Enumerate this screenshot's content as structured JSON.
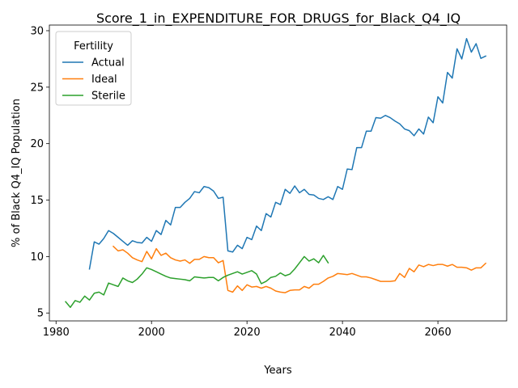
{
  "chart_data": {
    "type": "line",
    "title": "Score_1_in_EXPENDITURE_FOR_DRUGS_for_Black_Q4_IQ",
    "xlabel": "Years",
    "ylabel": "% of Black Q4_IQ Population",
    "xlim": [
      1978.6,
      2074.4
    ],
    "ylim": [
      4.3,
      30.5
    ],
    "xticks": [
      1980,
      2000,
      2020,
      2040,
      2060
    ],
    "xtick_labels": [
      "1980",
      "2000",
      "2020",
      "2040",
      "2060"
    ],
    "yticks": [
      5,
      10,
      15,
      20,
      25,
      30
    ],
    "ytick_labels": [
      "5",
      "10",
      "15",
      "20",
      "25",
      "30"
    ],
    "grid": false,
    "legend": {
      "title": "Fertility",
      "placement": "top-left",
      "entries": [
        "Actual",
        "Ideal",
        "Sterile"
      ]
    },
    "series": [
      {
        "name": "Actual",
        "color": "#1f77b4",
        "x": [
          1987,
          1988,
          1989,
          1990,
          1991,
          1992,
          1993,
          1994,
          1995,
          1996,
          1997,
          1998,
          1999,
          2000,
          2001,
          2002,
          2003,
          2004,
          2005,
          2006,
          2007,
          2008,
          2009,
          2010,
          2011,
          2012,
          2013,
          2014,
          2015,
          2016,
          2017,
          2018,
          2019,
          2020,
          2021,
          2022,
          2023,
          2024,
          2025,
          2026,
          2027,
          2028,
          2029,
          2030,
          2031,
          2032,
          2033,
          2034,
          2035,
          2036,
          2037,
          2038,
          2039,
          2040,
          2041,
          2042,
          2043,
          2044,
          2045,
          2046,
          2047,
          2048,
          2049,
          2050,
          2051,
          2052,
          2053,
          2054,
          2055,
          2056,
          2057,
          2058,
          2059,
          2060,
          2061,
          2062,
          2063,
          2064,
          2065,
          2066,
          2067,
          2068,
          2069,
          2070
        ],
        "values": [
          8.9,
          11.3,
          11.1,
          11.6,
          12.3,
          12.05,
          11.7,
          11.35,
          11.0,
          11.4,
          11.25,
          11.2,
          11.7,
          11.35,
          12.3,
          11.95,
          13.2,
          12.8,
          14.35,
          14.35,
          14.8,
          15.15,
          15.75,
          15.65,
          16.2,
          16.1,
          15.8,
          15.15,
          15.25,
          10.5,
          10.4,
          11.0,
          10.7,
          11.7,
          11.5,
          12.7,
          12.3,
          13.8,
          13.5,
          14.8,
          14.6,
          15.95,
          15.6,
          16.25,
          15.65,
          15.95,
          15.5,
          15.45,
          15.15,
          15.05,
          15.3,
          15.05,
          16.2,
          15.95,
          17.75,
          17.7,
          19.65,
          19.65,
          21.1,
          21.1,
          22.3,
          22.25,
          22.5,
          22.3,
          22.0,
          21.75,
          21.3,
          21.15,
          20.7,
          21.3,
          20.85,
          22.35,
          21.85,
          24.15,
          23.6,
          26.3,
          25.8,
          28.4,
          27.5,
          29.3,
          28.1,
          28.85,
          27.55,
          27.75
        ]
      },
      {
        "name": "Ideal",
        "color": "#ff7f0e",
        "x": [
          1992,
          1993,
          1994,
          1995,
          1996,
          1997,
          1998,
          1999,
          2000,
          2001,
          2002,
          2003,
          2004,
          2005,
          2006,
          2007,
          2008,
          2009,
          2010,
          2011,
          2012,
          2013,
          2014,
          2015,
          2016,
          2017,
          2018,
          2019,
          2020,
          2021,
          2022,
          2023,
          2024,
          2025,
          2026,
          2027,
          2028,
          2029,
          2030,
          2031,
          2032,
          2033,
          2034,
          2035,
          2036,
          2037,
          2038,
          2039,
          2040,
          2041,
          2042,
          2043,
          2044,
          2045,
          2046,
          2047,
          2048,
          2049,
          2050,
          2051,
          2052,
          2053,
          2054,
          2055,
          2056,
          2057,
          2058,
          2059,
          2060,
          2061,
          2062,
          2063,
          2064,
          2065,
          2066,
          2067,
          2068,
          2069,
          2070
        ],
        "values": [
          10.9,
          10.5,
          10.6,
          10.3,
          9.9,
          9.7,
          9.55,
          10.45,
          9.8,
          10.7,
          10.1,
          10.3,
          9.9,
          9.7,
          9.6,
          9.7,
          9.4,
          9.75,
          9.75,
          10.0,
          9.9,
          9.9,
          9.45,
          9.65,
          7.0,
          6.85,
          7.4,
          7.0,
          7.5,
          7.3,
          7.35,
          7.2,
          7.35,
          7.2,
          6.95,
          6.85,
          6.8,
          7.0,
          7.05,
          7.05,
          7.35,
          7.2,
          7.55,
          7.55,
          7.8,
          8.1,
          8.25,
          8.5,
          8.45,
          8.4,
          8.5,
          8.35,
          8.2,
          8.2,
          8.1,
          7.95,
          7.8,
          7.8,
          7.8,
          7.85,
          8.5,
          8.15,
          8.95,
          8.65,
          9.25,
          9.1,
          9.3,
          9.2,
          9.3,
          9.3,
          9.15,
          9.3,
          9.05,
          9.05,
          9.0,
          8.8,
          9.0,
          9.0,
          9.4
        ]
      },
      {
        "name": "Sterile",
        "color": "#2ca02c",
        "x": [
          1982,
          1983,
          1984,
          1985,
          1986,
          1987,
          1988,
          1989,
          1990,
          1991,
          1992,
          1993,
          1994,
          1995,
          1996,
          1997,
          1998,
          1999,
          2000,
          2001,
          2002,
          2003,
          2004,
          2005,
          2006,
          2007,
          2008,
          2009,
          2010,
          2011,
          2012,
          2013,
          2014,
          2015,
          2016,
          2017,
          2018,
          2019,
          2020,
          2021,
          2022,
          2023,
          2024,
          2025,
          2026,
          2027,
          2028,
          2029,
          2030,
          2031,
          2032,
          2033,
          2034,
          2035,
          2036,
          2037
        ],
        "values": [
          6.0,
          5.5,
          6.1,
          5.95,
          6.5,
          6.15,
          6.75,
          6.85,
          6.6,
          7.65,
          7.5,
          7.35,
          8.1,
          7.85,
          7.7,
          8.0,
          8.45,
          9.0,
          8.85,
          8.65,
          8.45,
          8.25,
          8.1,
          8.05,
          8.0,
          7.95,
          7.85,
          8.2,
          8.15,
          8.1,
          8.15,
          8.15,
          7.85,
          8.15,
          8.35,
          8.5,
          8.65,
          8.45,
          8.6,
          8.75,
          8.45,
          7.6,
          7.8,
          8.15,
          8.25,
          8.55,
          8.3,
          8.45,
          8.9,
          9.45,
          10.0,
          9.6,
          9.8,
          9.45,
          10.1,
          9.45
        ]
      }
    ]
  }
}
